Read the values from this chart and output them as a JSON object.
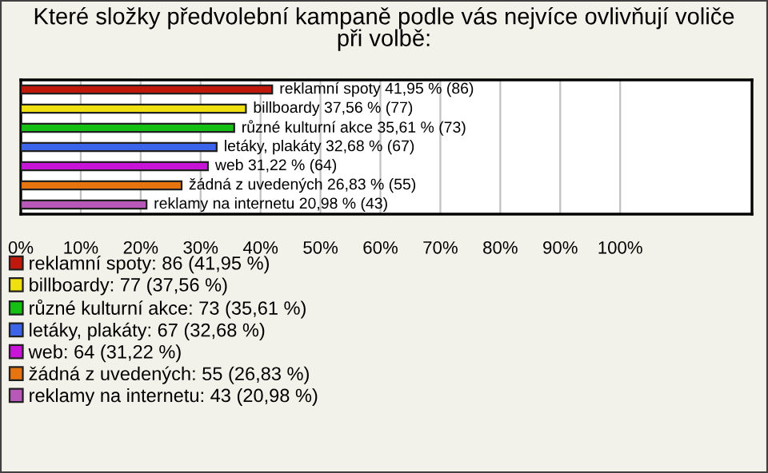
{
  "chart_data": {
    "type": "bar",
    "orientation": "horizontal",
    "title": "Které složky předvolební kampaně podle vás nejvíce ovlivňují voliče\npři volbě:",
    "categories": [
      null,
      null,
      null,
      null,
      null,
      null,
      null
    ],
    "series": [
      {
        "name": "reklamní spoty: 86 (41,95 %)",
        "color": "#c0180c",
        "values": [
          41.95,
          null,
          null,
          null,
          null,
          null,
          null
        ],
        "value_labels": [
          "reklamní spoty 41,95 % (86)",
          null,
          null,
          null,
          null,
          null,
          null
        ]
      },
      {
        "name": "billboardy: 77 (37,56 %)",
        "color": "#f0e010",
        "values": [
          null,
          37.56,
          null,
          null,
          null,
          null,
          null
        ],
        "value_labels": [
          null,
          "billboardy 37,56 % (77)",
          null,
          null,
          null,
          null,
          null
        ]
      },
      {
        "name": "různé kulturní akce: 73 (35,61 %)",
        "color": "#14c014",
        "values": [
          null,
          null,
          35.61,
          null,
          null,
          null,
          null
        ],
        "value_labels": [
          null,
          null,
          "různé kulturní akce 35,61 % (73)",
          null,
          null,
          null,
          null
        ]
      },
      {
        "name": "letáky, plakáty: 67 (32,68 %)",
        "color": "#3c64e8",
        "values": [
          null,
          null,
          null,
          32.68,
          null,
          null,
          null
        ],
        "value_labels": [
          null,
          null,
          null,
          "letáky, plakáty 32,68 % (67)",
          null,
          null,
          null
        ]
      },
      {
        "name": "web: 64 (31,22 %)",
        "color": "#c814d8",
        "values": [
          null,
          null,
          null,
          null,
          31.22,
          null,
          null
        ],
        "value_labels": [
          null,
          null,
          null,
          null,
          "web 31,22 % (64)",
          null,
          null
        ]
      },
      {
        "name": "žádná z uvedených: 55 (26,83 %)",
        "color": "#e87410",
        "values": [
          null,
          null,
          null,
          null,
          null,
          26.83,
          null
        ],
        "value_labels": [
          null,
          null,
          null,
          null,
          null,
          "žádná z uvedených 26,83 % (55)",
          null
        ]
      },
      {
        "name": "reklamy na internetu: 43 (20,98 %)",
        "color": "#b858b8",
        "values": [
          null,
          null,
          null,
          null,
          null,
          null,
          20.98
        ],
        "value_labels": [
          null,
          null,
          null,
          null,
          null,
          null,
          "reklamy na internetu 20,98 % (43)"
        ]
      }
    ],
    "xlim": [
      0,
      122
    ],
    "xticks": [
      {
        "value": 0,
        "label": "0%"
      },
      {
        "value": 10,
        "label": "10%"
      },
      {
        "value": 20,
        "label": "20%"
      },
      {
        "value": 30,
        "label": "30%"
      },
      {
        "value": 40,
        "label": "40%"
      },
      {
        "value": 50,
        "label": "50%"
      },
      {
        "value": 60,
        "label": "60%"
      },
      {
        "value": 70,
        "label": "70%"
      },
      {
        "value": 80,
        "label": "80%"
      },
      {
        "value": 90,
        "label": "90%"
      },
      {
        "value": 100,
        "label": "100%"
      }
    ],
    "grid": "x",
    "legend": "bottom",
    "tick_labels": "x"
  }
}
